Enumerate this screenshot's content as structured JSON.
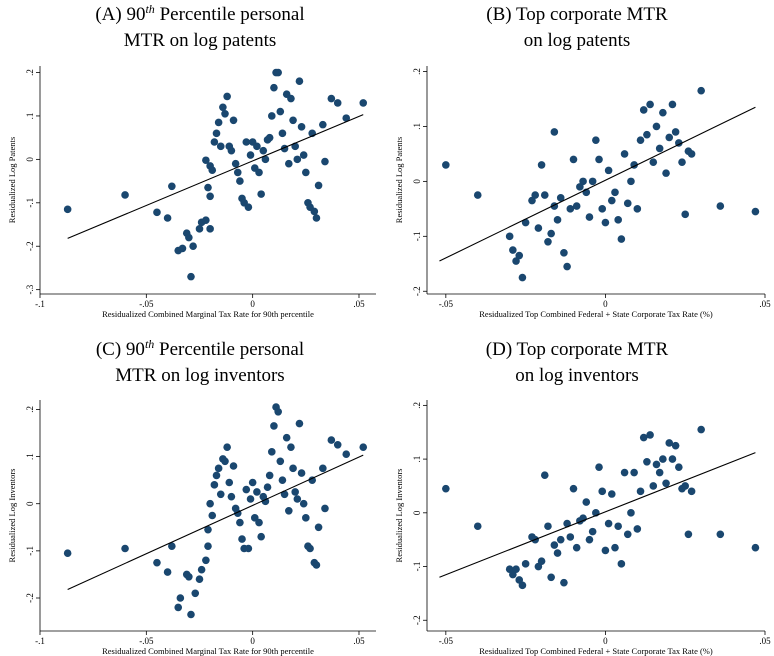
{
  "chart_data": [
    {
      "type": "scatter",
      "title": [
        [
          {
            "text": "(A) 90"
          },
          {
            "text": "th",
            "sup": true
          },
          {
            "text": " Percentile personal"
          }
        ],
        [
          {
            "text": "MTR on log patents"
          }
        ]
      ],
      "xlabel": "Residualized Combined Marginal Tax Rate for 90th percentile",
      "ylabel": "Residualized Log Patents",
      "color": "#1a476f",
      "xlim": [
        -0.1,
        0.058
      ],
      "ylim": [
        -0.31,
        0.215
      ],
      "xticks": [
        {
          "value": -0.1,
          "label": "-.1"
        },
        {
          "value": -0.05,
          "label": "-.05"
        },
        0,
        {
          "value": 0.05,
          "label": ".05"
        }
      ],
      "yticks": [
        {
          "value": 0.2,
          "label": ".2"
        },
        {
          "value": 0.1,
          "label": ".1"
        },
        0,
        {
          "value": -0.1,
          "label": "-.1"
        },
        {
          "value": -0.2,
          "label": "-.2"
        },
        {
          "value": -0.3,
          "label": "-.3"
        }
      ],
      "x": [
        -0.087,
        -0.06,
        -0.045,
        -0.04,
        -0.038,
        -0.035,
        -0.033,
        -0.031,
        -0.03,
        -0.029,
        -0.028,
        -0.025,
        -0.024,
        -0.022,
        -0.021,
        -0.02,
        -0.02,
        -0.022,
        -0.02,
        -0.019,
        -0.018,
        -0.017,
        -0.016,
        -0.015,
        -0.014,
        -0.013,
        -0.012,
        -0.011,
        -0.01,
        -0.009,
        -0.008,
        -0.007,
        -0.006,
        -0.005,
        -0.004,
        -0.003,
        -0.002,
        -0.001,
        0,
        0.001,
        0.002,
        0.003,
        0.004,
        0.005,
        0.006,
        0.007,
        0.008,
        0.009,
        0.01,
        0.011,
        0.012,
        0.013,
        0.014,
        0.015,
        0.016,
        0.017,
        0.018,
        0.019,
        0.02,
        0.021,
        0.022,
        0.023,
        0.024,
        0.025,
        0.026,
        0.027,
        0.028,
        0.029,
        0.03,
        0.031,
        0.033,
        0.034,
        0.037,
        0.04,
        0.044,
        0.052
      ],
      "values": [
        -0.115,
        -0.082,
        -0.122,
        -0.135,
        -0.062,
        -0.21,
        -0.205,
        -0.17,
        -0.18,
        -0.27,
        -0.2,
        -0.16,
        -0.145,
        -0.14,
        -0.065,
        -0.085,
        -0.16,
        -0.002,
        -0.015,
        -0.025,
        0.04,
        0.06,
        0.085,
        0.03,
        0.12,
        0.105,
        0.145,
        0.03,
        0.02,
        0.09,
        -0.01,
        -0.03,
        -0.05,
        -0.09,
        -0.1,
        0.04,
        -0.11,
        0.01,
        0.04,
        -0.02,
        0.03,
        -0.03,
        -0.08,
        0.02,
        0,
        0.045,
        0.05,
        0.1,
        0.165,
        0.2,
        0.2,
        0.11,
        0.06,
        0.025,
        0.15,
        -0.01,
        0.14,
        0.09,
        0.03,
        0,
        0.18,
        0.075,
        0.01,
        -0.03,
        -0.1,
        -0.11,
        0.06,
        -0.12,
        -0.135,
        -0.06,
        0.08,
        -0.005,
        0.14,
        0.13,
        0.095,
        0.13
      ],
      "fit_x": [
        -0.087,
        0.052
      ],
      "fit_y": [
        -0.182,
        0.103
      ]
    },
    {
      "type": "scatter",
      "title": [
        [
          {
            "text": "(B)  Top corporate MTR"
          }
        ],
        [
          {
            "text": "on log patents"
          }
        ]
      ],
      "xlabel": "Residualized Top Combined Federal + State Corporate Tax Rate (%)",
      "ylabel": "Residualized Log Patents",
      "color": "#1a476f",
      "xlim": [
        -0.0559,
        0.05
      ],
      "ylim": [
        -0.205,
        0.21
      ],
      "xticks": [
        {
          "value": -0.05,
          "label": "-.05"
        },
        0,
        {
          "value": 0.05,
          "label": ".05"
        }
      ],
      "yticks": [
        {
          "value": 0.2,
          "label": ".2"
        },
        {
          "value": 0.1,
          "label": ".1"
        },
        0,
        {
          "value": -0.1,
          "label": "-.1"
        },
        {
          "value": -0.2,
          "label": "-.2"
        }
      ],
      "x": [
        -0.05,
        -0.04,
        -0.03,
        -0.029,
        -0.028,
        -0.027,
        -0.026,
        -0.025,
        -0.023,
        -0.022,
        -0.021,
        -0.02,
        -0.019,
        -0.018,
        -0.017,
        -0.016,
        -0.016,
        -0.015,
        -0.014,
        -0.013,
        -0.012,
        -0.011,
        -0.01,
        -0.009,
        -0.008,
        -0.007,
        -0.006,
        -0.005,
        -0.004,
        -0.003,
        -0.002,
        -0.001,
        0,
        0.001,
        0.002,
        0.003,
        0.004,
        0.005,
        0.006,
        0.007,
        0.008,
        0.009,
        0.01,
        0.011,
        0.012,
        0.013,
        0.014,
        0.015,
        0.016,
        0.017,
        0.018,
        0.019,
        0.02,
        0.021,
        0.022,
        0.023,
        0.024,
        0.025,
        0.026,
        0.027,
        0.03,
        0.036,
        0.047
      ],
      "values": [
        0.03,
        -0.025,
        -0.1,
        -0.125,
        -0.145,
        -0.135,
        -0.175,
        -0.075,
        -0.035,
        -0.025,
        -0.085,
        0.03,
        -0.025,
        -0.11,
        -0.095,
        0.09,
        -0.045,
        -0.07,
        -0.03,
        -0.13,
        -0.155,
        -0.05,
        0.04,
        -0.045,
        -0.01,
        0,
        -0.02,
        -0.065,
        0,
        0.075,
        0.04,
        -0.05,
        -0.075,
        0.02,
        -0.035,
        -0.02,
        -0.07,
        -0.105,
        0.05,
        -0.04,
        0,
        0.03,
        -0.05,
        0.075,
        0.13,
        0.085,
        0.14,
        0.035,
        0.1,
        0.06,
        0.125,
        0.015,
        0.08,
        0.14,
        0.09,
        0.07,
        0.035,
        -0.06,
        0.055,
        0.05,
        0.165,
        -0.045,
        -0.055
      ],
      "fit_x": [
        -0.052,
        0.047
      ],
      "fit_y": [
        -0.145,
        0.135
      ]
    },
    {
      "type": "scatter",
      "title": [
        [
          {
            "text": "(C) 90"
          },
          {
            "text": "th",
            "sup": true
          },
          {
            "text": " Percentile personal"
          }
        ],
        [
          {
            "text": "MTR on log inventors"
          }
        ]
      ],
      "xlabel": "Residualized Combined Marginal Tax Rate for 90th percentile",
      "ylabel": "Residualized Log Inventors",
      "color": "#1a476f",
      "xlim": [
        -0.1,
        0.058
      ],
      "ylim": [
        -0.27,
        0.22
      ],
      "xticks": [
        {
          "value": -0.1,
          "label": "-.1"
        },
        {
          "value": -0.05,
          "label": "-.05"
        },
        0,
        {
          "value": 0.05,
          "label": ".05"
        }
      ],
      "yticks": [
        {
          "value": 0.2,
          "label": ".2"
        },
        {
          "value": 0.1,
          "label": ".1"
        },
        0,
        {
          "value": -0.1,
          "label": "-.1"
        },
        {
          "value": -0.2,
          "label": "-.2"
        }
      ],
      "x": [
        -0.087,
        -0.06,
        -0.045,
        -0.04,
        -0.038,
        -0.035,
        -0.034,
        -0.031,
        -0.03,
        -0.029,
        -0.027,
        -0.025,
        -0.024,
        -0.022,
        -0.021,
        -0.021,
        -0.02,
        -0.019,
        -0.018,
        -0.017,
        -0.016,
        -0.015,
        -0.014,
        -0.013,
        -0.012,
        -0.011,
        -0.01,
        -0.009,
        -0.008,
        -0.007,
        -0.006,
        -0.005,
        -0.004,
        -0.003,
        -0.002,
        -0.001,
        0,
        0.001,
        0.002,
        0.003,
        0.004,
        0.005,
        0.006,
        0.007,
        0.008,
        0.009,
        0.01,
        0.011,
        0.012,
        0.013,
        0.014,
        0.015,
        0.016,
        0.017,
        0.018,
        0.019,
        0.02,
        0.021,
        0.022,
        0.023,
        0.024,
        0.025,
        0.026,
        0.027,
        0.028,
        0.029,
        0.03,
        0.031,
        0.033,
        0.034,
        0.037,
        0.04,
        0.044,
        0.052
      ],
      "values": [
        -0.105,
        -0.095,
        -0.125,
        -0.145,
        -0.09,
        -0.22,
        -0.2,
        -0.15,
        -0.155,
        -0.235,
        -0.19,
        -0.16,
        -0.14,
        -0.12,
        -0.09,
        -0.055,
        0,
        -0.025,
        0.04,
        0.06,
        0.075,
        0.02,
        0.095,
        0.09,
        0.12,
        0.045,
        0.015,
        0.08,
        -0.01,
        -0.02,
        -0.04,
        -0.075,
        -0.095,
        0.03,
        -0.095,
        0.01,
        0.045,
        -0.03,
        0.025,
        -0.04,
        -0.07,
        0.015,
        0.005,
        0.035,
        0.06,
        0.11,
        0.165,
        0.205,
        0.195,
        0.09,
        0.05,
        0.02,
        0.14,
        -0.015,
        0.12,
        0.075,
        0.025,
        0.01,
        0.17,
        0.065,
        0,
        -0.03,
        -0.09,
        -0.095,
        0.05,
        -0.125,
        -0.13,
        -0.05,
        0.075,
        -0.01,
        0.135,
        0.125,
        0.105,
        0.12
      ],
      "fit_x": [
        -0.087,
        0.052
      ],
      "fit_y": [
        -0.182,
        0.103
      ]
    },
    {
      "type": "scatter",
      "title": [
        [
          {
            "text": "(D)  Top corporate MTR"
          }
        ],
        [
          {
            "text": "on log inventors"
          }
        ]
      ],
      "xlabel": "Residualized Top Combined Federal + State Corporate Tax Rate (%)",
      "ylabel": "Residualized Log Inventors",
      "color": "#1a476f",
      "xlim": [
        -0.0559,
        0.05
      ],
      "ylim": [
        -0.22,
        0.21
      ],
      "xticks": [
        {
          "value": -0.05,
          "label": "-.05"
        },
        0,
        {
          "value": 0.05,
          "label": ".05"
        }
      ],
      "yticks": [
        {
          "value": 0.2,
          "label": ".2"
        },
        {
          "value": 0.1,
          "label": ".1"
        },
        0,
        {
          "value": -0.1,
          "label": "-.1"
        },
        {
          "value": -0.2,
          "label": "-.2"
        }
      ],
      "x": [
        -0.05,
        -0.04,
        -0.03,
        -0.029,
        -0.028,
        -0.027,
        -0.026,
        -0.025,
        -0.023,
        -0.022,
        -0.021,
        -0.02,
        -0.019,
        -0.018,
        -0.017,
        -0.016,
        -0.015,
        -0.014,
        -0.013,
        -0.012,
        -0.011,
        -0.01,
        -0.009,
        -0.008,
        -0.007,
        -0.006,
        -0.005,
        -0.004,
        -0.003,
        -0.002,
        -0.001,
        0,
        0.001,
        0.002,
        0.003,
        0.004,
        0.005,
        0.006,
        0.007,
        0.008,
        0.009,
        0.01,
        0.011,
        0.012,
        0.013,
        0.014,
        0.015,
        0.016,
        0.017,
        0.018,
        0.019,
        0.02,
        0.021,
        0.022,
        0.023,
        0.024,
        0.025,
        0.026,
        0.027,
        0.03,
        0.036,
        0.047
      ],
      "values": [
        0.045,
        -0.025,
        -0.105,
        -0.115,
        -0.105,
        -0.125,
        -0.135,
        -0.095,
        -0.045,
        -0.05,
        -0.1,
        -0.09,
        0.07,
        -0.025,
        -0.12,
        -0.06,
        -0.075,
        -0.05,
        -0.13,
        -0.02,
        -0.045,
        0.045,
        -0.065,
        -0.015,
        -0.01,
        0.02,
        -0.05,
        -0.035,
        0,
        0.085,
        0.04,
        -0.07,
        -0.02,
        0.035,
        -0.065,
        -0.025,
        -0.095,
        0.075,
        -0.04,
        0,
        0.075,
        -0.03,
        0.04,
        0.14,
        0.095,
        0.145,
        0.05,
        0.09,
        0.075,
        0.1,
        0.055,
        0.13,
        0.1,
        0.125,
        0.085,
        0.045,
        0.05,
        -0.04,
        0.04,
        0.155,
        -0.04,
        -0.065
      ],
      "fit_x": [
        -0.052,
        0.047
      ],
      "fit_y": [
        -0.12,
        0.112
      ]
    }
  ]
}
